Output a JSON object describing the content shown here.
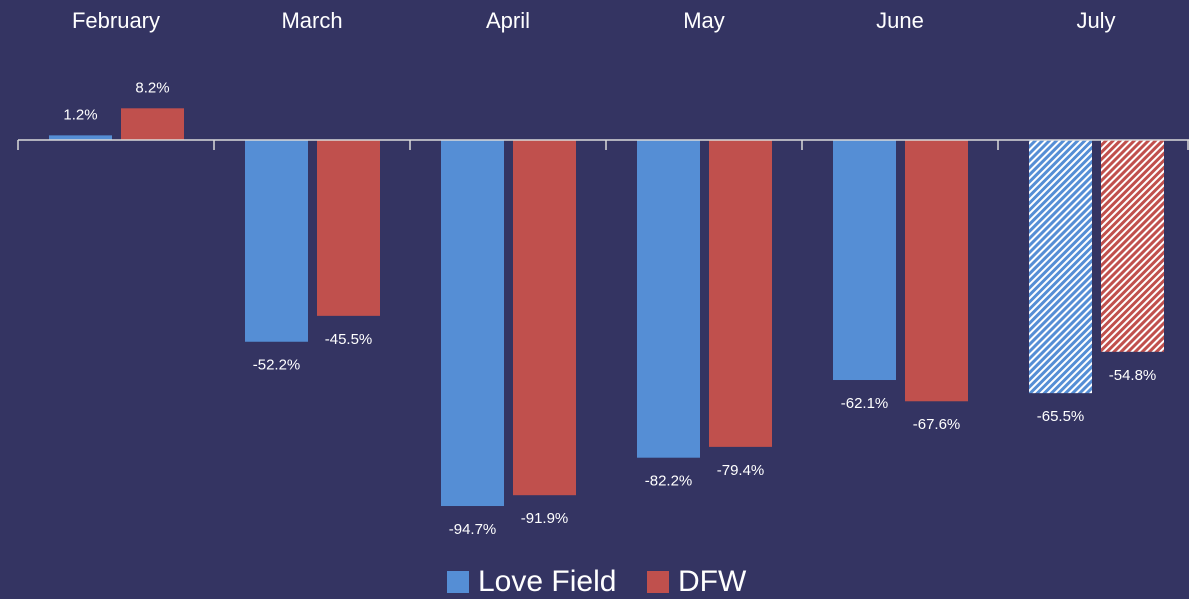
{
  "chart_data": {
    "type": "bar",
    "categories": [
      "February",
      "March",
      "April",
      "May",
      "June",
      "July"
    ],
    "series": [
      {
        "name": "Love Field",
        "color": "#558ed5",
        "values": [
          1.2,
          -52.2,
          -94.7,
          -82.2,
          -62.1,
          -65.5
        ],
        "value_labels": [
          "1.2%",
          "-52.2%",
          "-94.7%",
          "-82.2%",
          "-62.1%",
          "-65.5%"
        ]
      },
      {
        "name": "DFW",
        "color": "#c0504d",
        "values": [
          8.2,
          -45.5,
          -91.9,
          -79.4,
          -67.6,
          -54.8
        ],
        "value_labels": [
          "8.2%",
          "-45.5%",
          "-91.9%",
          "-79.4%",
          "-67.6%",
          "-54.8%"
        ]
      }
    ],
    "hatched": [
      false,
      false,
      false,
      false,
      false,
      true
    ],
    "ylim": [
      -100,
      10
    ]
  }
}
